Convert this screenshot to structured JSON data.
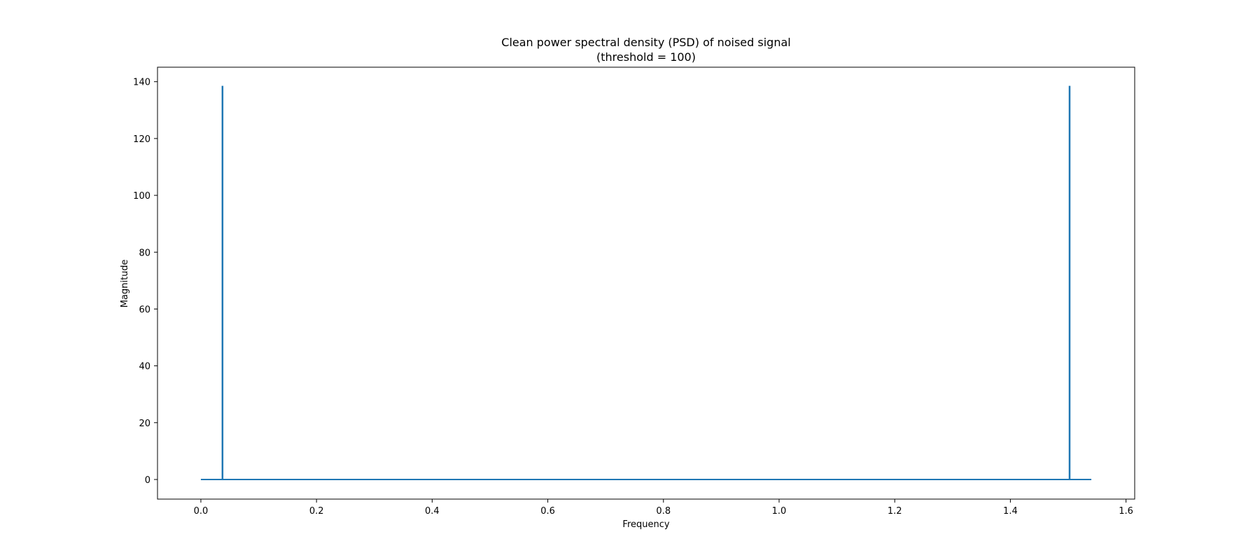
{
  "chart_data": {
    "type": "line",
    "title": "Clean power spectral density (PSD) of noised signal",
    "subtitle": "(threshold = 100)",
    "xlabel": "Frequency",
    "ylabel": "Magnitude",
    "xlim": [
      -0.075,
      1.615
    ],
    "ylim": [
      -6.9,
      145.1
    ],
    "x_ticks": [
      0.0,
      0.2,
      0.4,
      0.6,
      0.8,
      1.0,
      1.2,
      1.4,
      1.6
    ],
    "x_tick_labels": [
      "0.0",
      "0.2",
      "0.4",
      "0.6",
      "0.8",
      "1.0",
      "1.2",
      "1.4",
      "1.6"
    ],
    "y_ticks": [
      0,
      20,
      40,
      60,
      80,
      100,
      120,
      140
    ],
    "y_tick_labels": [
      "0",
      "20",
      "40",
      "60",
      "80",
      "100",
      "120",
      "140"
    ],
    "grid": false,
    "series": [
      {
        "color": "#1f77b4",
        "x": [
          0.0,
          0.0371,
          0.0371,
          0.0377,
          0.0377,
          1.5021,
          1.5021,
          1.5027,
          1.5027,
          1.54
        ],
        "y": [
          0,
          0,
          138.3,
          138.3,
          0,
          0,
          138.3,
          138.3,
          0,
          0
        ]
      }
    ]
  }
}
